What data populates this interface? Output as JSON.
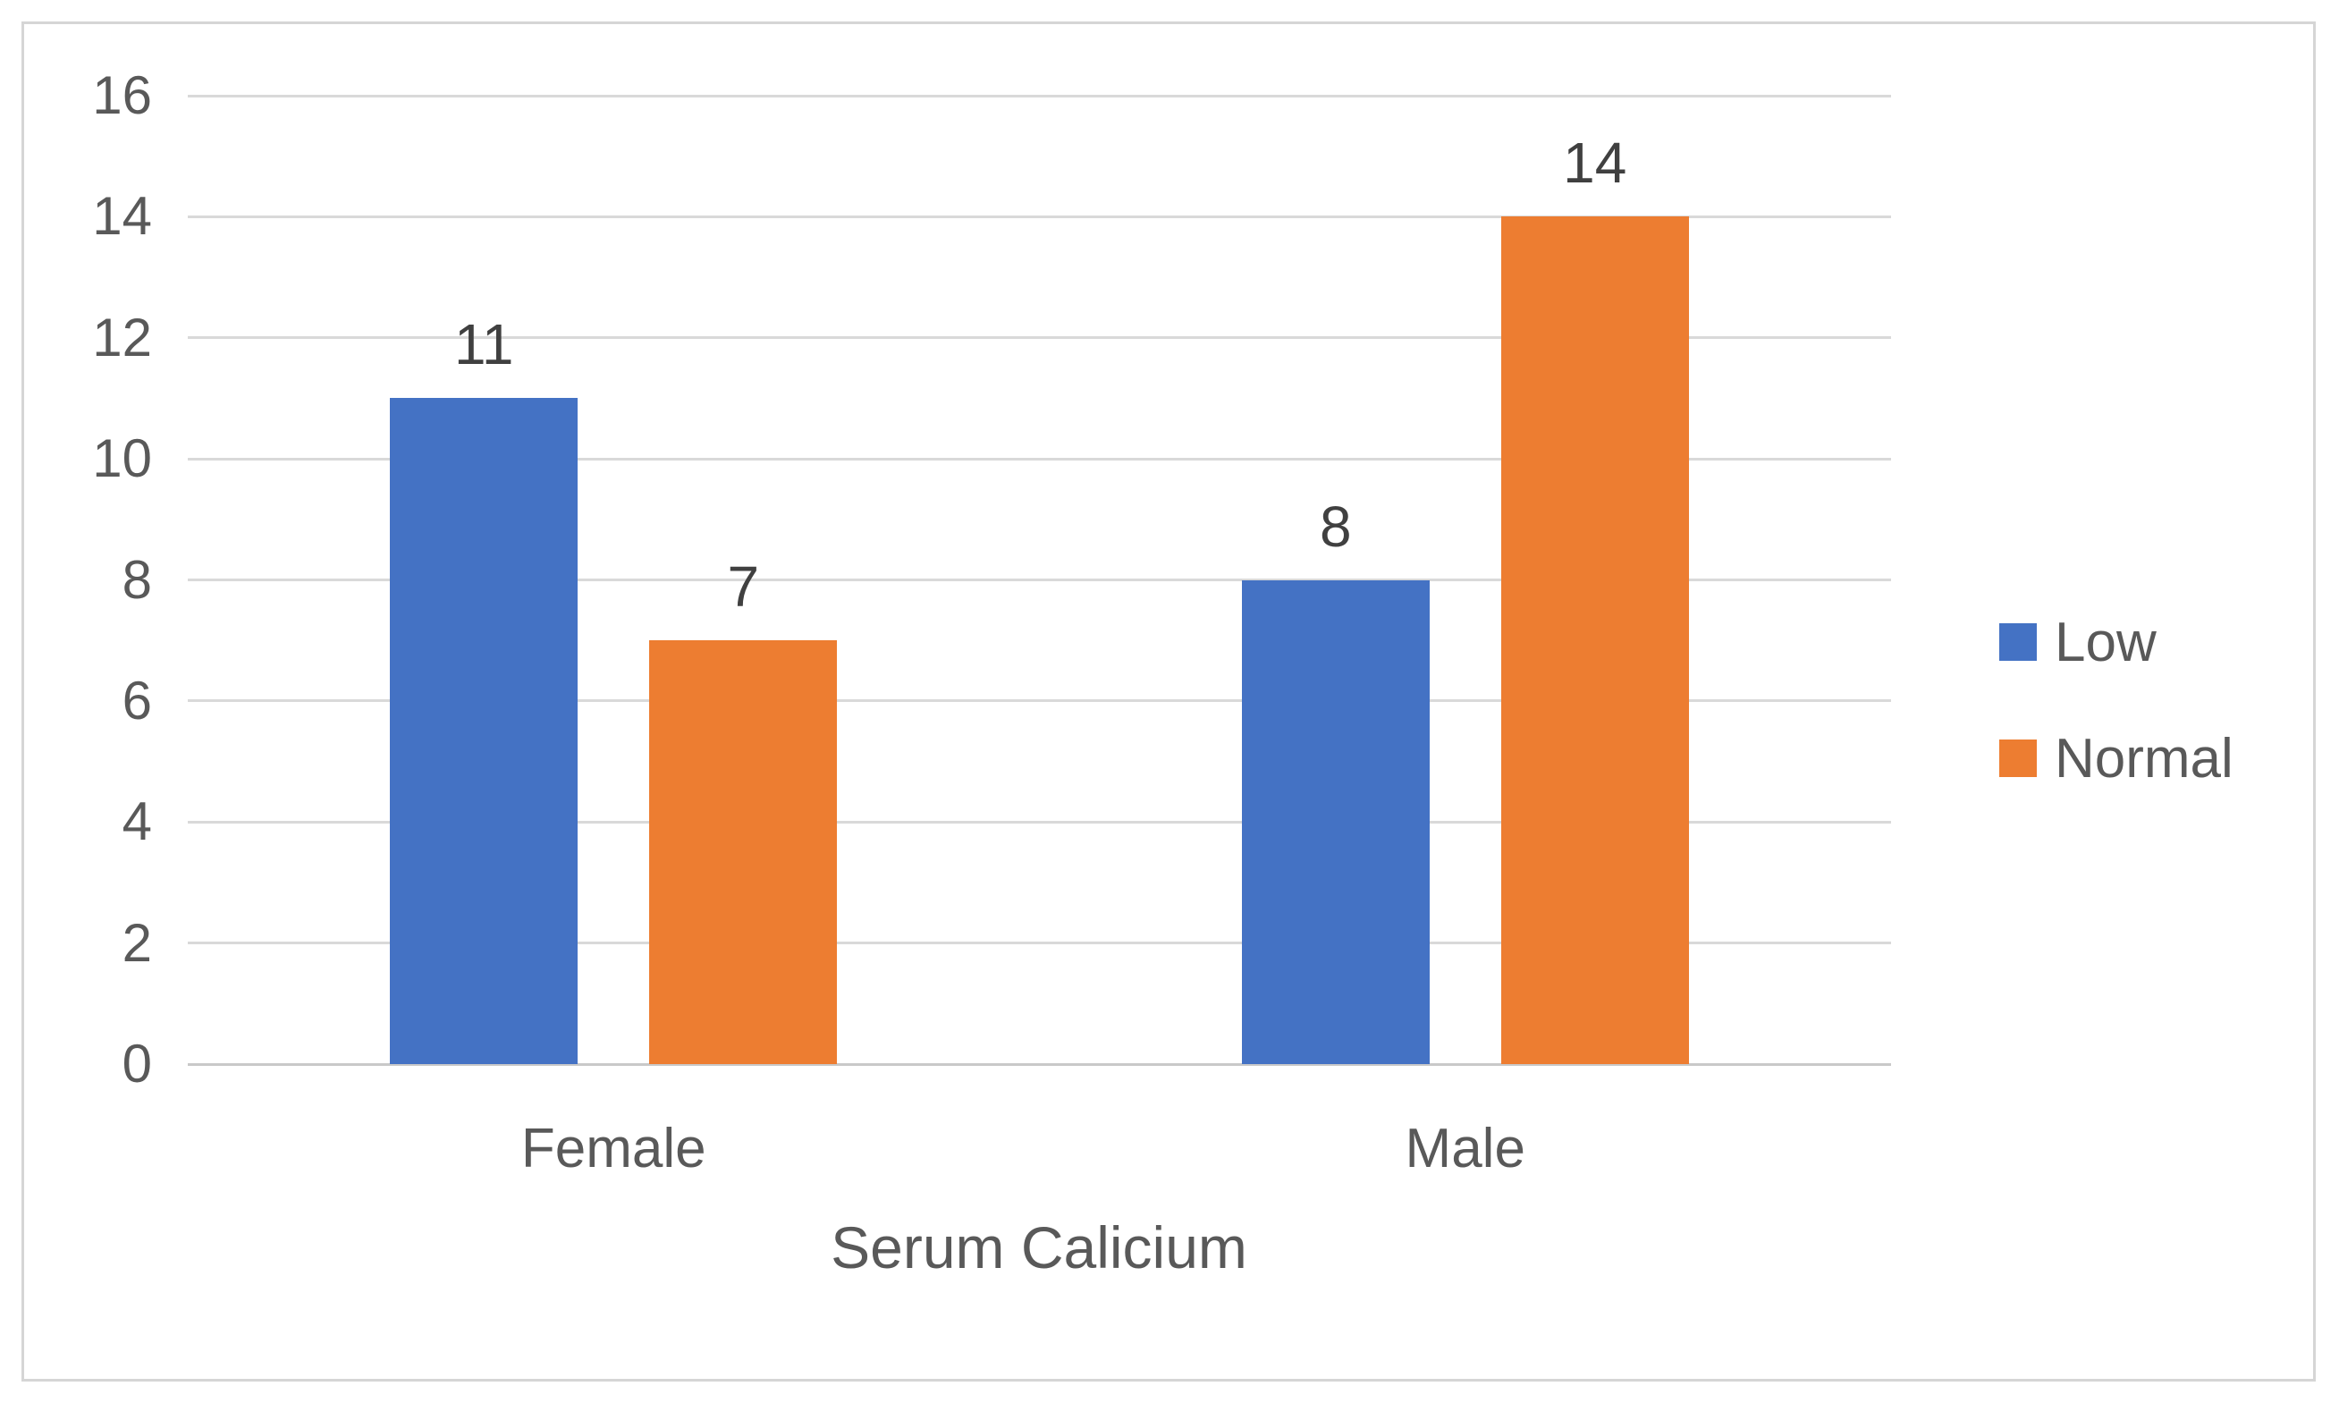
{
  "chart_data": {
    "type": "bar",
    "categories": [
      "Female",
      "Male"
    ],
    "series": [
      {
        "name": "Low",
        "color": "#4472C4",
        "values": [
          11,
          8
        ]
      },
      {
        "name": "Normal",
        "color": "#ED7D31",
        "values": [
          7,
          14
        ]
      }
    ],
    "data_labels_shown": true,
    "title": "",
    "xlabel": "Serum Calicium",
    "ylabel": "",
    "ylim": [
      0,
      16
    ],
    "yticks": [
      0,
      2,
      4,
      6,
      8,
      10,
      12,
      14,
      16
    ],
    "grid": true,
    "legend_position": "right",
    "legend_entries": [
      "Low",
      "Normal"
    ]
  },
  "styles": {
    "grid_color": "#D9D9D9",
    "baseline_color": "#C9C9C9",
    "axis_text_color": "#595959",
    "data_label_color": "#404040",
    "frame_border_color": "#D5D5D5",
    "background": "#FFFFFF"
  }
}
